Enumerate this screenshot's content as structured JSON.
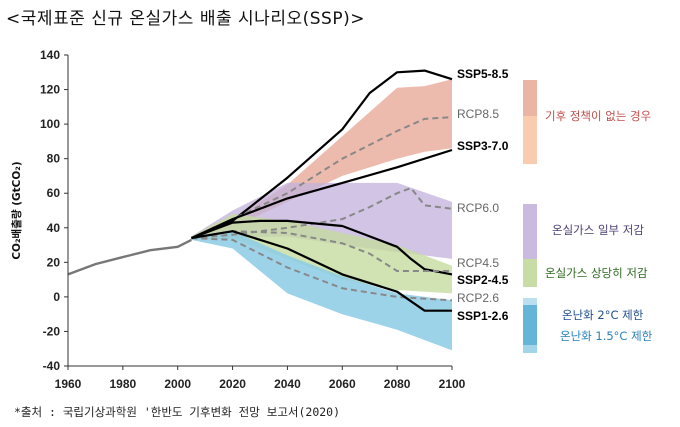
{
  "page": {
    "title": "<국제표준 신규 온실가스 배출 시나리오(SSP)>",
    "source": "*출처 : 국립기상과학원 '한반도 기후변화 전망 보고서(2020)"
  },
  "colors": {
    "historical": "#777777",
    "high_band": "#e8a896",
    "high_band_light": "#f9c6a6",
    "mid_band": "#c4b3dc",
    "low_band": "#c5dba0",
    "very_low_band": "#8ccbe4",
    "very_low_band_deep": "#4aa8d2",
    "ssp_line": "#000000",
    "rcp_line": "#888888",
    "cat_high_text": "#c0504d",
    "cat_mid_text": "#4b3f72",
    "cat_low_text": "#2e6b1f",
    "cat_2c_text": "#1f4e8c",
    "cat_15c_text": "#2a82b8"
  },
  "chart_data": {
    "type": "line",
    "title": "",
    "xlabel": "",
    "ylabel": "CO₂배출량 (GtCO₂)",
    "xlim": [
      1960,
      2100
    ],
    "ylim": [
      -40,
      140
    ],
    "xticks": [
      1960,
      1980,
      2000,
      2020,
      2040,
      2060,
      2080,
      2100
    ],
    "yticks": [
      -40,
      -20,
      0,
      20,
      40,
      60,
      80,
      100,
      120,
      140
    ],
    "grid": false,
    "historical": {
      "x": [
        1960,
        1970,
        1980,
        1990,
        2000,
        2005
      ],
      "y": [
        13,
        19,
        23,
        27,
        29,
        33
      ]
    },
    "bands": [
      {
        "name": "high",
        "color_key": "high_band",
        "x": [
          2005,
          2020,
          2040,
          2060,
          2080,
          2090,
          2100
        ],
        "upper": [
          35,
          45,
          65,
          93,
          121,
          122,
          126
        ],
        "lower": [
          33,
          40,
          55,
          70,
          80,
          84,
          86
        ]
      },
      {
        "name": "medium",
        "color_key": "mid_band",
        "x": [
          2005,
          2020,
          2040,
          2060,
          2080,
          2100
        ],
        "upper": [
          35,
          50,
          66,
          66,
          66,
          55
        ],
        "lower": [
          33,
          34,
          35,
          30,
          26,
          22
        ]
      },
      {
        "name": "low",
        "color_key": "low_band",
        "x": [
          2005,
          2020,
          2040,
          2060,
          2080,
          2100
        ],
        "upper": [
          35,
          48,
          44,
          37,
          30,
          18
        ],
        "lower": [
          33,
          34,
          22,
          10,
          4,
          2
        ]
      },
      {
        "name": "very-low",
        "color_key": "very_low_band",
        "x": [
          2005,
          2020,
          2040,
          2060,
          2080,
          2100
        ],
        "upper": [
          35,
          38,
          24,
          12,
          2,
          -2
        ],
        "lower": [
          33,
          28,
          2,
          -10,
          -19,
          -31
        ]
      }
    ],
    "series": [
      {
        "name": "SSP5-8.5",
        "style": "ssp",
        "x": [
          2005,
          2020,
          2040,
          2060,
          2070,
          2080,
          2090,
          2100
        ],
        "y": [
          34,
          44,
          69,
          97,
          118,
          130,
          131,
          126
        ]
      },
      {
        "name": "RCP8.5",
        "style": "rcp",
        "x": [
          2005,
          2020,
          2040,
          2060,
          2080,
          2090,
          2100
        ],
        "y": [
          34,
          45,
          60,
          80,
          96,
          103,
          104
        ]
      },
      {
        "name": "SSP3-7.0",
        "style": "ssp",
        "x": [
          2005,
          2020,
          2040,
          2060,
          2080,
          2100
        ],
        "y": [
          34,
          45,
          57,
          66,
          75,
          85
        ]
      },
      {
        "name": "RCP6.0",
        "style": "rcp",
        "x": [
          2005,
          2020,
          2040,
          2060,
          2070,
          2080,
          2085,
          2090,
          2100
        ],
        "y": [
          34,
          36,
          40,
          45,
          52,
          60,
          63,
          53,
          51
        ]
      },
      {
        "name": "SSP2-4.5",
        "style": "ssp",
        "x": [
          2005,
          2020,
          2030,
          2040,
          2060,
          2070,
          2080,
          2085,
          2090,
          2100
        ],
        "y": [
          34,
          43,
          44,
          44,
          41,
          35,
          29,
          22,
          16,
          13
        ]
      },
      {
        "name": "RCP4.5",
        "style": "rcp",
        "x": [
          2005,
          2020,
          2040,
          2060,
          2070,
          2080,
          2090,
          2100
        ],
        "y": [
          34,
          38,
          37,
          31,
          25,
          15,
          15,
          15
        ]
      },
      {
        "name": "RCP2.6",
        "style": "rcp",
        "x": [
          2005,
          2020,
          2040,
          2060,
          2080,
          2100
        ],
        "y": [
          34,
          33,
          17,
          5,
          0,
          -2
        ]
      },
      {
        "name": "SSP1-2.6",
        "style": "ssp",
        "x": [
          2005,
          2020,
          2040,
          2060,
          2080,
          2090,
          2100
        ],
        "y": [
          34,
          38,
          28,
          13,
          3,
          -8,
          -8
        ]
      }
    ],
    "category_labels": [
      {
        "text": "기후 정책이 없는 경우",
        "color_key": "cat_high_text"
      },
      {
        "text": "온실가스 일부 저감",
        "color_key": "cat_mid_text"
      },
      {
        "text": "온실가스 상당히 저감",
        "color_key": "cat_low_text"
      },
      {
        "text": "온난화 2°C 제한",
        "color_key": "cat_2c_text"
      },
      {
        "text": "온난화 1.5°C 제한",
        "color_key": "cat_15c_text"
      }
    ]
  }
}
